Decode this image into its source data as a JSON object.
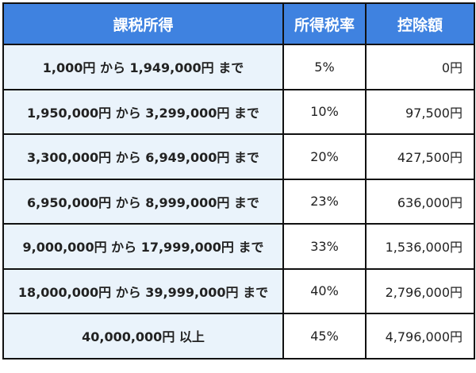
{
  "table": {
    "headers": [
      "課税所得",
      "所得税率",
      "控除額"
    ],
    "rows": [
      {
        "range": "1,000円 から 1,949,000円 まで",
        "rate": "5%",
        "deduction": "0円"
      },
      {
        "range": "1,950,000円 から 3,299,000円 まで",
        "rate": "10%",
        "deduction": "97,500円"
      },
      {
        "range": "3,300,000円 から 6,949,000円 まで",
        "rate": "20%",
        "deduction": "427,500円"
      },
      {
        "range": "6,950,000円 から 8,999,000円 まで",
        "rate": "23%",
        "deduction": "636,000円"
      },
      {
        "range": "9,000,000円 から 17,999,000円 まで",
        "rate": "33%",
        "deduction": "1,536,000円"
      },
      {
        "range": "18,000,000円 から 39,999,000円 まで",
        "rate": "40%",
        "deduction": "2,796,000円"
      },
      {
        "range": "40,000,000円 以上",
        "rate": "45%",
        "deduction": "4,796,000円"
      }
    ]
  },
  "colors": {
    "header_bg": "#3f82e0",
    "range_bg": "#eaf3fb",
    "border": "#111111"
  }
}
